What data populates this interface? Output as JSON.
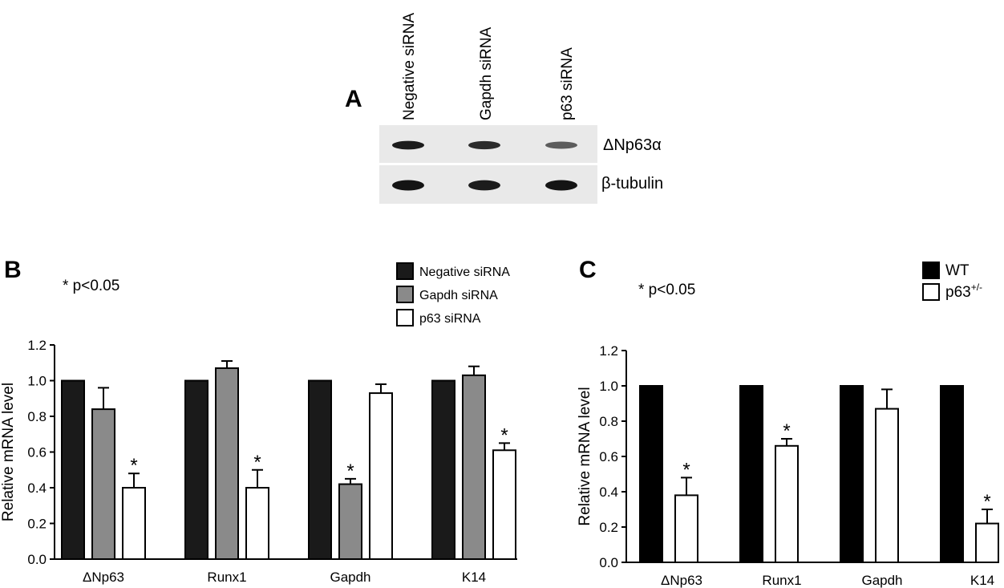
{
  "panel_a": {
    "letter": "A",
    "lanes": [
      "Negative siRNA",
      "Gapdh siRNA",
      "p63 siRNA"
    ],
    "bands": [
      "ΔNp63α",
      "β-tubulin"
    ],
    "band_intensity": {
      "ΔNp63α": [
        0.95,
        0.85,
        0.55
      ],
      "β-tubulin": [
        1.0,
        0.95,
        1.0
      ]
    }
  },
  "panel_b": {
    "letter": "B",
    "significance_note": "* p<0.05"
  },
  "panel_c": {
    "letter": "C",
    "significance_note": "* p<0.05"
  },
  "colors": {
    "negative": "#1a1a1a",
    "gapdh": "#8a8a8a",
    "p63": "#ffffff",
    "wt": "#000000",
    "p63het": "#ffffff"
  },
  "chart_data": [
    {
      "type": "bar",
      "panel": "B",
      "categories": [
        "ΔNp63",
        "Runx1",
        "Gapdh",
        "K14"
      ],
      "ylabel": "Relative mRNA level",
      "xlabel": "",
      "ylim": [
        0,
        1.2
      ],
      "yticks": [
        "0.0",
        "0.2",
        "0.4",
        "0.6",
        "0.8",
        "1.0",
        "1.2"
      ],
      "legend_position": "top-right",
      "series": [
        {
          "name": "Negative siRNA",
          "values": [
            1.0,
            1.0,
            1.0,
            1.0
          ],
          "errors": [
            0,
            0,
            0,
            0
          ],
          "significant": [
            false,
            false,
            false,
            false
          ]
        },
        {
          "name": "Gapdh siRNA",
          "values": [
            0.84,
            1.07,
            0.42,
            1.03
          ],
          "errors": [
            0.12,
            0.04,
            0.03,
            0.05
          ],
          "significant": [
            false,
            false,
            true,
            false
          ]
        },
        {
          "name": "p63 siRNA",
          "values": [
            0.4,
            0.4,
            0.93,
            0.61
          ],
          "errors": [
            0.08,
            0.1,
            0.05,
            0.04
          ],
          "significant": [
            true,
            true,
            false,
            true
          ]
        }
      ],
      "significance_marker": "*"
    },
    {
      "type": "bar",
      "panel": "C",
      "categories": [
        "ΔNp63",
        "Runx1",
        "Gapdh",
        "K14"
      ],
      "ylabel": "Relative mRNA level",
      "xlabel": "",
      "ylim": [
        0,
        1.2
      ],
      "yticks": [
        "0.0",
        "0.2",
        "0.4",
        "0.6",
        "0.8",
        "1.0",
        "1.2"
      ],
      "legend_position": "top-right",
      "series": [
        {
          "name": "WT",
          "values": [
            1.0,
            1.0,
            1.0,
            1.0
          ],
          "errors": [
            0,
            0,
            0,
            0
          ],
          "significant": [
            false,
            false,
            false,
            false
          ]
        },
        {
          "name": "p63",
          "name_superscript": "+/-",
          "values": [
            0.38,
            0.66,
            0.87,
            0.22
          ],
          "errors": [
            0.1,
            0.04,
            0.11,
            0.08
          ],
          "significant": [
            true,
            true,
            false,
            true
          ]
        }
      ],
      "significance_marker": "*"
    }
  ]
}
